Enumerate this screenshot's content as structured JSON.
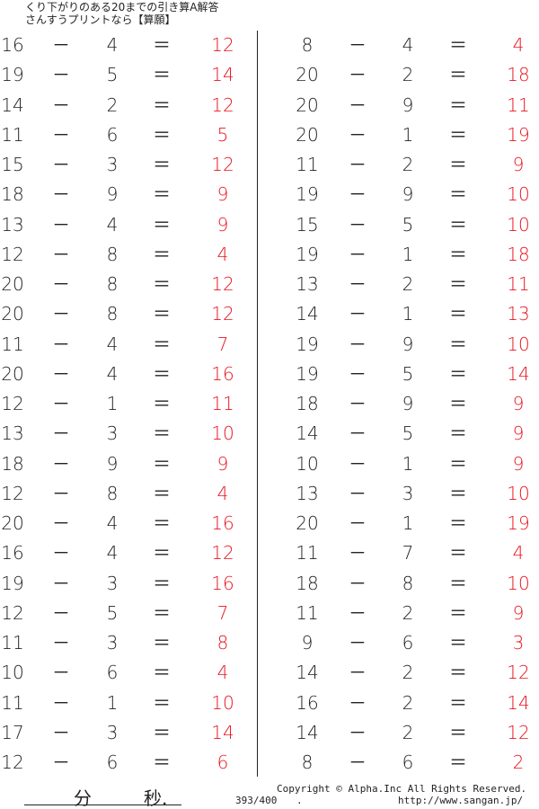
{
  "header": {
    "title": "くり下がりのある20までの引き算A解答",
    "subtitle": "さんすうプリントなら【算願】"
  },
  "operator": "－",
  "equals": "＝",
  "left": [
    [
      16,
      4,
      12
    ],
    [
      19,
      5,
      14
    ],
    [
      14,
      2,
      12
    ],
    [
      11,
      6,
      5
    ],
    [
      15,
      3,
      12
    ],
    [
      18,
      9,
      9
    ],
    [
      13,
      4,
      9
    ],
    [
      12,
      8,
      4
    ],
    [
      20,
      8,
      12
    ],
    [
      20,
      8,
      12
    ],
    [
      11,
      4,
      7
    ],
    [
      20,
      4,
      16
    ],
    [
      12,
      1,
      11
    ],
    [
      13,
      3,
      10
    ],
    [
      18,
      9,
      9
    ],
    [
      12,
      8,
      4
    ],
    [
      20,
      4,
      16
    ],
    [
      16,
      4,
      12
    ],
    [
      19,
      3,
      16
    ],
    [
      12,
      5,
      7
    ],
    [
      11,
      3,
      8
    ],
    [
      10,
      6,
      4
    ],
    [
      11,
      1,
      10
    ],
    [
      17,
      3,
      14
    ],
    [
      12,
      6,
      6
    ]
  ],
  "right": [
    [
      8,
      4,
      4
    ],
    [
      20,
      2,
      18
    ],
    [
      20,
      9,
      11
    ],
    [
      20,
      1,
      19
    ],
    [
      11,
      2,
      9
    ],
    [
      19,
      9,
      10
    ],
    [
      15,
      5,
      10
    ],
    [
      19,
      1,
      18
    ],
    [
      13,
      2,
      11
    ],
    [
      14,
      1,
      13
    ],
    [
      19,
      9,
      10
    ],
    [
      19,
      5,
      14
    ],
    [
      18,
      9,
      9
    ],
    [
      14,
      5,
      9
    ],
    [
      10,
      1,
      9
    ],
    [
      13,
      3,
      10
    ],
    [
      20,
      1,
      19
    ],
    [
      11,
      7,
      4
    ],
    [
      18,
      8,
      10
    ],
    [
      11,
      2,
      9
    ],
    [
      9,
      6,
      3
    ],
    [
      14,
      2,
      12
    ],
    [
      16,
      2,
      14
    ],
    [
      14,
      2,
      12
    ],
    [
      8,
      6,
      2
    ]
  ],
  "footer": {
    "minutes": "分",
    "seconds": "秒.",
    "copyright": "Copyright ©  Alpha.Inc All Rights Reserved.",
    "page": "393/400",
    "dot": ".",
    "url": "http://www.sangan.jp/"
  },
  "colors": {
    "answer": "#e8141e",
    "text": "#222222"
  }
}
